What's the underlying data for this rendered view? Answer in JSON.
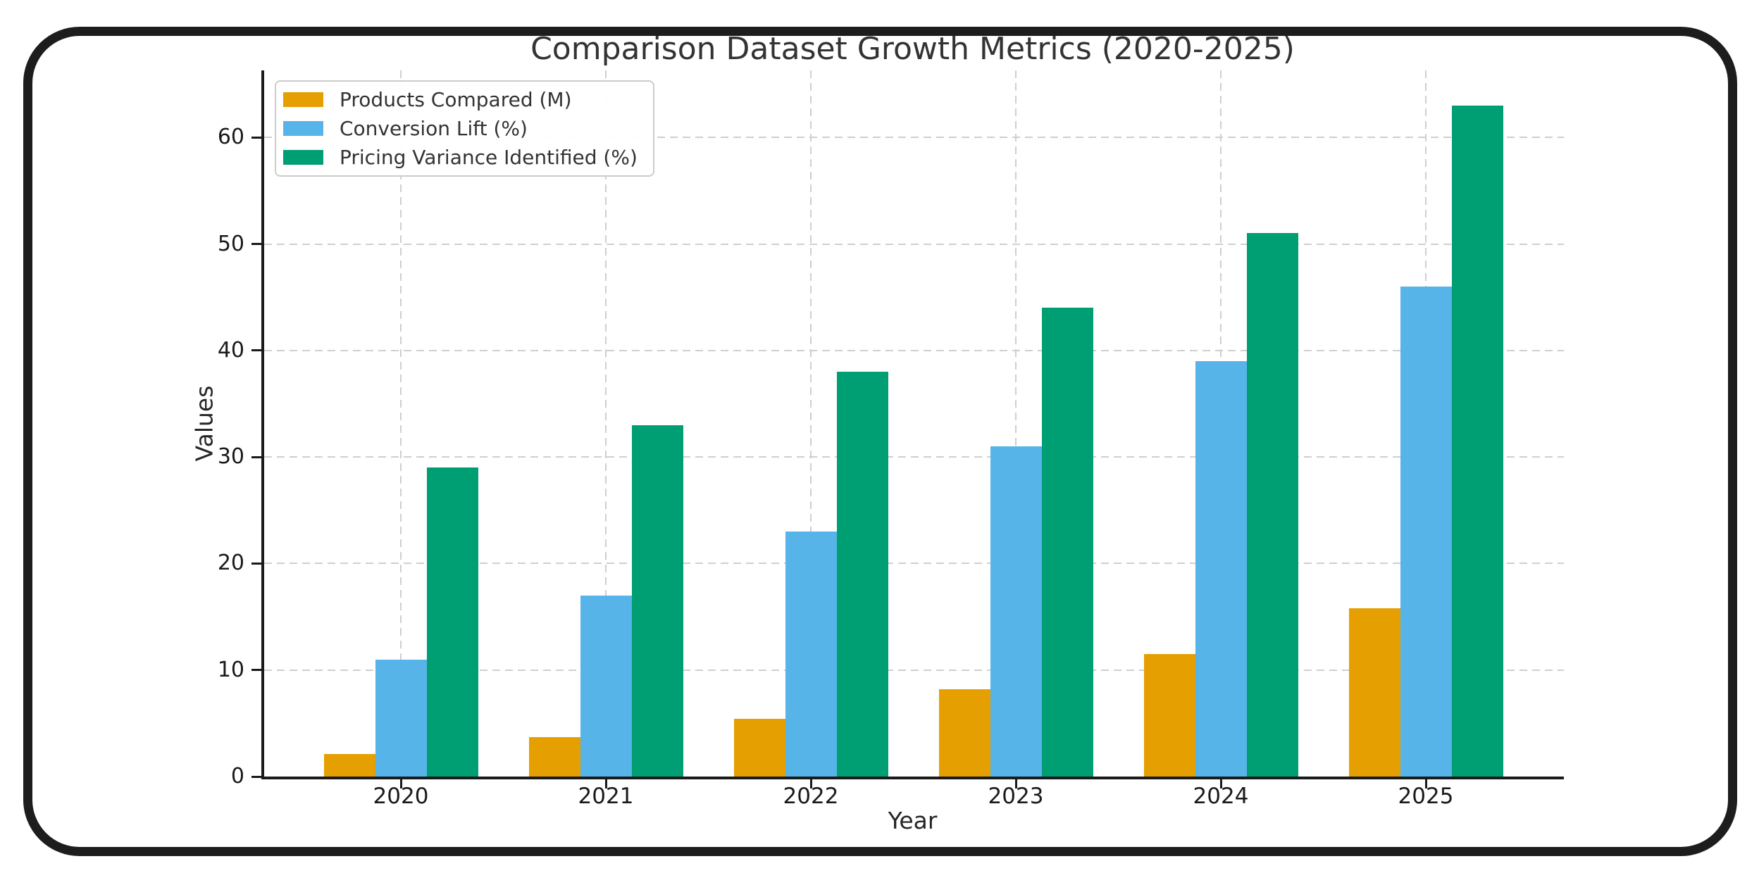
{
  "chart_data": {
    "type": "bar",
    "title": "Comparison Dataset Growth Metrics (2020-2025)",
    "xlabel": "Year",
    "ylabel": "Values",
    "categories": [
      "2020",
      "2021",
      "2022",
      "2023",
      "2024",
      "2025"
    ],
    "series": [
      {
        "name": "Products Compared (M)",
        "color": "#E69F00",
        "values": [
          2.1,
          3.7,
          5.4,
          8.2,
          11.5,
          15.8
        ]
      },
      {
        "name": "Conversion Lift (%)",
        "color": "#56B4E9",
        "values": [
          11,
          17,
          23,
          31,
          39,
          46
        ]
      },
      {
        "name": "Pricing Variance Identified (%)",
        "color": "#009E73",
        "values": [
          29,
          33,
          38,
          44,
          51,
          63
        ]
      }
    ],
    "yticks": [
      0,
      10,
      20,
      30,
      40,
      50,
      60
    ],
    "ylim": [
      0,
      66.3
    ],
    "grid": "dashed both directions",
    "legend_position": "upper left",
    "colors": {
      "grid": "#cfcfcf",
      "axis": "#1a1a1a",
      "title_text": "#333333",
      "tick_text": "#1a1a1a",
      "frame_border": "#1d1d1d"
    }
  }
}
